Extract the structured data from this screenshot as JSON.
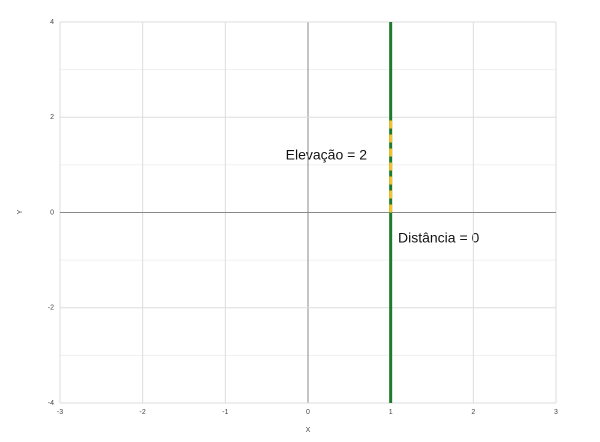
{
  "chart_data": {
    "type": "line",
    "x_label": "X",
    "y_label": "Y",
    "xlim": [
      -3,
      3
    ],
    "ylim": [
      -4,
      4
    ],
    "xticks": [
      -3,
      -2,
      -1,
      0,
      1,
      2,
      3
    ],
    "yticks": [
      -4,
      -2,
      0,
      2,
      4
    ],
    "grid": true,
    "series": [
      {
        "color": "#1f7a2e",
        "x": [
          1,
          1
        ],
        "values": [
          -4,
          4
        ],
        "width": 3
      },
      {
        "color": "#f2c12e",
        "x": [
          1,
          1
        ],
        "values": [
          0,
          2
        ],
        "width": 3,
        "dashed": true
      }
    ],
    "annotations": [
      "Elevação = 2",
      "Distância = 0"
    ]
  }
}
